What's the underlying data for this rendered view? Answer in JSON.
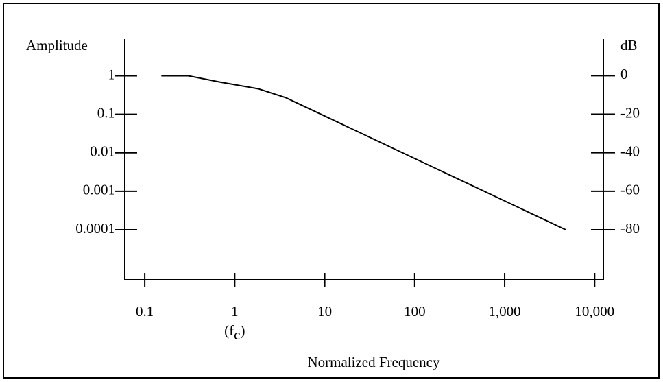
{
  "chart_data": {
    "type": "line",
    "ylabel": "Amplitude",
    "y2label": "dB",
    "xlabel": "Normalized Frequency",
    "annotation": {
      "open": "(f",
      "sub": "c",
      "close": ")",
      "x": 1
    },
    "xscale": "log",
    "yscale": "log",
    "xlim": [
      0.06,
      12500
    ],
    "xticks": [
      0.1,
      1,
      10,
      100,
      {
        "value": 1000,
        "label": "1,000"
      },
      {
        "value": 10000,
        "label": "10,000"
      }
    ],
    "ylim": [
      5e-06,
      9
    ],
    "yticks": [
      1,
      0.1,
      0.01,
      0.001,
      0.0001
    ],
    "y2lim": [
      -106,
      19
    ],
    "y2ticks": [
      0,
      -20,
      -40,
      -60,
      -80
    ],
    "x": [
      0.153,
      0.305,
      0.68,
      1.83,
      3.7,
      4770
    ],
    "values": [
      1,
      1,
      0.69,
      0.46,
      0.27,
      0.0001
    ],
    "color": "#000000"
  }
}
